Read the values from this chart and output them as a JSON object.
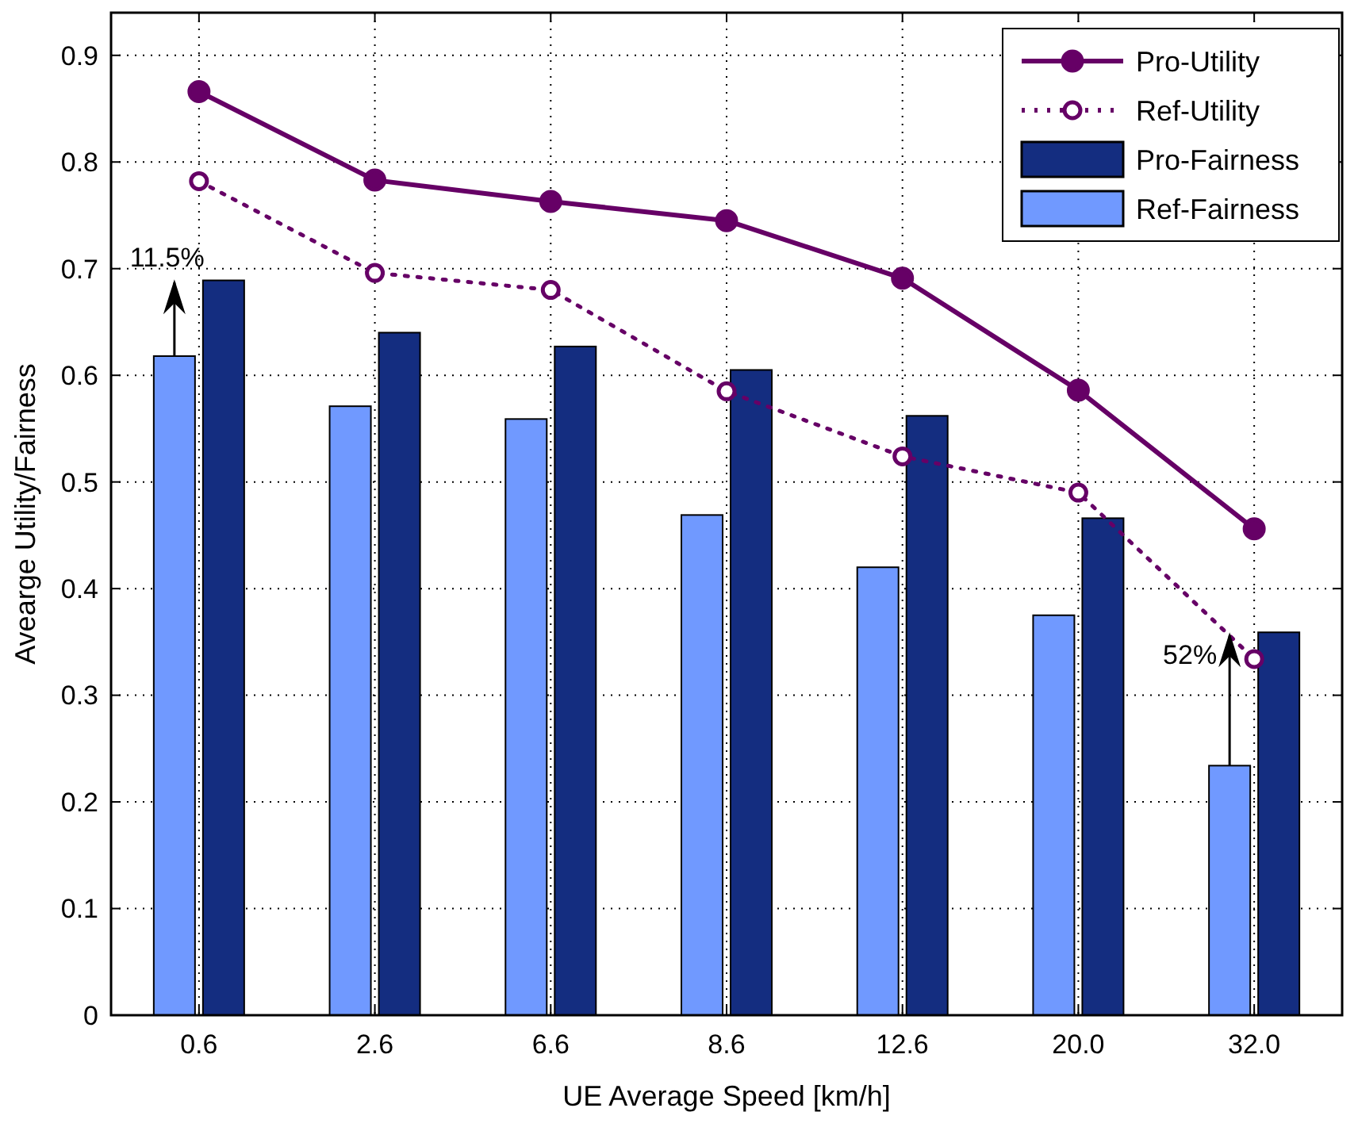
{
  "chart_data": {
    "type": "bar",
    "xlabel": "UE Average Speed [km/h]",
    "ylabel": "Avearge Utility/Fairness",
    "categories": [
      "0.6",
      "2.6",
      "6.6",
      "8.6",
      "12.6",
      "20.0",
      "32.0"
    ],
    "series": [
      {
        "name": "Pro-Utility",
        "type": "line",
        "color": "#660066",
        "line_style": "solid",
        "marker": "circle",
        "values": [
          0.866,
          0.783,
          0.763,
          0.745,
          0.691,
          0.586,
          0.456
        ]
      },
      {
        "name": "Ref-Utility",
        "type": "line",
        "color": "#660066",
        "line_style": "dotted",
        "marker": "circle",
        "values": [
          0.782,
          0.696,
          0.68,
          0.585,
          0.524,
          0.49,
          0.334
        ]
      },
      {
        "name": "Pro-Fairness",
        "color": "#142d80",
        "values": [
          0.689,
          0.64,
          0.627,
          0.605,
          0.562,
          0.466,
          0.359
        ]
      },
      {
        "name": "Ref-Fairness",
        "color": "#7099ff",
        "values": [
          0.618,
          0.571,
          0.559,
          0.469,
          0.42,
          0.375,
          0.234
        ]
      }
    ],
    "ylim": [
      0,
      0.94
    ],
    "yticks": [
      0,
      0.1,
      0.2,
      0.3,
      0.4,
      0.5,
      0.6,
      0.7,
      0.8,
      0.9
    ],
    "grid": true,
    "legend": "top right",
    "annotations": [
      {
        "text": "11.5%",
        "x": "0.6",
        "y": 0.69
      },
      {
        "text": "52%",
        "x": "32.0",
        "y": 0.359
      }
    ]
  }
}
